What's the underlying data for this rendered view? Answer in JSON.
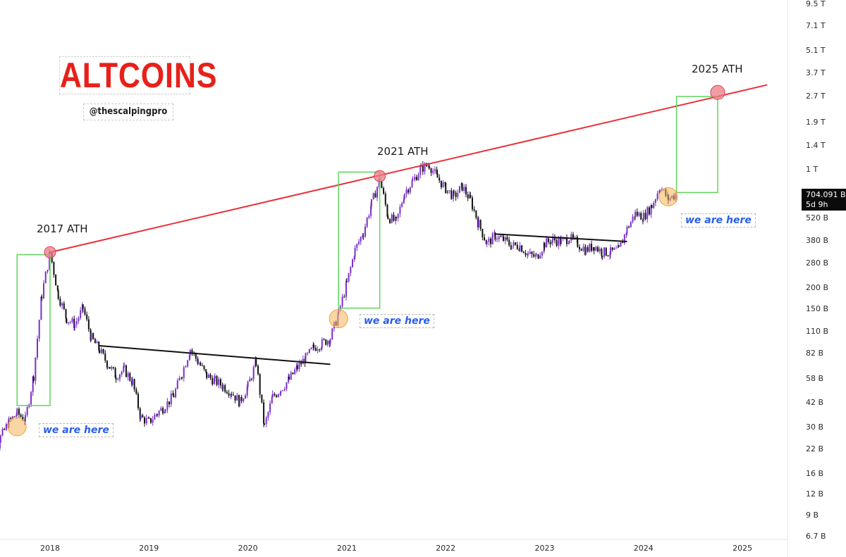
{
  "branding": {
    "title": "ALTCOINS",
    "handle": "@thescalpingpro"
  },
  "annotations": {
    "ath_2017": "2017 ATH",
    "ath_2021": "2021 ATH",
    "ath_2025": "2025 ATH",
    "we_are_here": "we are here"
  },
  "price_tag": {
    "value": "704.091 B",
    "countdown": "5d 9h"
  },
  "colors": {
    "trendline": "#e8323a",
    "up_candle": "#7b2fc9",
    "down_candle": "#111111",
    "box": "#5ed45e",
    "ath_marker": "#ee7a8a",
    "current_marker": "#f5b45a",
    "title": "#e8201a",
    "annotation_text": "#2a5ee8"
  },
  "chart_data": {
    "type": "candlestick",
    "title": "ALTCOINS",
    "scale": "log",
    "y_axis_ticks": [
      "9.5 T",
      "7.1 T",
      "5.1 T",
      "3.7 T",
      "2.7 T",
      "1.9 T",
      "1.4 T",
      "1 T",
      "520 B",
      "380 B",
      "280 B",
      "200 B",
      "150 B",
      "110 B",
      "82 B",
      "58 B",
      "42 B",
      "30 B",
      "22 B",
      "16 B",
      "12 B",
      "9 B",
      "6.7 B"
    ],
    "x_axis_ticks": [
      "2018",
      "2019",
      "2020",
      "2021",
      "2022",
      "2023",
      "2024",
      "2025"
    ],
    "xlim": [
      "2017-05",
      "2025-04"
    ],
    "ylim_usd": [
      6700000000.0,
      9500000000000.0
    ],
    "last_price": "704.091 B",
    "series": [
      {
        "values": [
          [
            "2017-05",
            11000000000.0
          ],
          [
            "2017-06",
            19000000000.0
          ],
          [
            "2017-07",
            26000000000.0
          ],
          [
            "2017-08",
            32000000000.0
          ],
          [
            "2017-09",
            36000000000.0
          ],
          [
            "2017-10",
            33000000000.0
          ],
          [
            "2017-11",
            60000000000.0
          ],
          [
            "2017-12",
            180000000000.0
          ],
          [
            "2018-01",
            320000000000.0
          ],
          [
            "2018-02",
            180000000000.0
          ],
          [
            "2018-03",
            130000000000.0
          ],
          [
            "2018-04",
            120000000000.0
          ],
          [
            "2018-05",
            150000000000.0
          ],
          [
            "2018-06",
            100000000000.0
          ],
          [
            "2018-07",
            85000000000.0
          ],
          [
            "2018-08",
            70000000000.0
          ],
          [
            "2018-09",
            60000000000.0
          ],
          [
            "2018-10",
            65000000000.0
          ],
          [
            "2018-11",
            55000000000.0
          ],
          [
            "2018-12",
            34000000000.0
          ],
          [
            "2019-01",
            32000000000.0
          ],
          [
            "2019-02",
            36000000000.0
          ],
          [
            "2019-03",
            40000000000.0
          ],
          [
            "2019-04",
            46000000000.0
          ],
          [
            "2019-05",
            62000000000.0
          ],
          [
            "2019-06",
            86000000000.0
          ],
          [
            "2019-07",
            72000000000.0
          ],
          [
            "2019-08",
            60000000000.0
          ],
          [
            "2019-09",
            56000000000.0
          ],
          [
            "2019-10",
            52000000000.0
          ],
          [
            "2019-11",
            48000000000.0
          ],
          [
            "2019-12",
            42000000000.0
          ],
          [
            "2020-01",
            52000000000.0
          ],
          [
            "2020-02",
            72000000000.0
          ],
          [
            "2020-03",
            30000000000.0
          ],
          [
            "2020-04",
            45000000000.0
          ],
          [
            "2020-05",
            50000000000.0
          ],
          [
            "2020-06",
            57000000000.0
          ],
          [
            "2020-07",
            67000000000.0
          ],
          [
            "2020-08",
            76000000000.0
          ],
          [
            "2020-09",
            88000000000.0
          ],
          [
            "2020-10",
            93000000000.0
          ],
          [
            "2020-11",
            100000000000.0
          ],
          [
            "2020-12",
            140000000000.0
          ],
          [
            "2021-01",
            210000000000.0
          ],
          [
            "2021-02",
            330000000000.0
          ],
          [
            "2021-03",
            420000000000.0
          ],
          [
            "2021-04",
            620000000000.0
          ],
          [
            "2021-05",
            860000000000.0
          ],
          [
            "2021-06",
            520000000000.0
          ],
          [
            "2021-07",
            480000000000.0
          ],
          [
            "2021-08",
            720000000000.0
          ],
          [
            "2021-09",
            840000000000.0
          ],
          [
            "2021-10",
            1000000000000.0
          ],
          [
            "2021-11",
            1050000000000.0
          ],
          [
            "2021-12",
            880000000000.0
          ],
          [
            "2022-01",
            760000000000.0
          ],
          [
            "2022-02",
            680000000000.0
          ],
          [
            "2022-03",
            780000000000.0
          ],
          [
            "2022-04",
            650000000000.0
          ],
          [
            "2022-05",
            470000000000.0
          ],
          [
            "2022-06",
            360000000000.0
          ],
          [
            "2022-07",
            400000000000.0
          ],
          [
            "2022-08",
            380000000000.0
          ],
          [
            "2022-09",
            350000000000.0
          ],
          [
            "2022-10",
            350000000000.0
          ],
          [
            "2022-11",
            310000000000.0
          ],
          [
            "2022-12",
            300000000000.0
          ],
          [
            "2023-01",
            360000000000.0
          ],
          [
            "2023-02",
            380000000000.0
          ],
          [
            "2023-03",
            370000000000.0
          ],
          [
            "2023-04",
            390000000000.0
          ],
          [
            "2023-05",
            360000000000.0
          ],
          [
            "2023-06",
            330000000000.0
          ],
          [
            "2023-07",
            350000000000.0
          ],
          [
            "2023-08",
            320000000000.0
          ],
          [
            "2023-09",
            320000000000.0
          ],
          [
            "2023-10",
            330000000000.0
          ],
          [
            "2023-11",
            440000000000.0
          ],
          [
            "2023-12",
            540000000000.0
          ],
          [
            "2024-01",
            520000000000.0
          ],
          [
            "2024-02",
            600000000000.0
          ],
          [
            "2024-03",
            780000000000.0
          ],
          [
            "2024-04",
            660000000000.0
          ],
          [
            "2024-05",
            704000000000.0
          ]
        ]
      }
    ],
    "overlays": {
      "ath_trendline": {
        "from": [
          "2018-01",
          320000000000.0
        ],
        "to": [
          "2025-04",
          3100000000000.0
        ]
      },
      "resistance_2018_2020": {
        "from": [
          "2018-07",
          90000000000.0
        ],
        "to": [
          "2020-11",
          70000000000.0
        ]
      },
      "resistance_2022_2023": {
        "from": [
          "2022-07",
          410000000000.0
        ],
        "to": [
          "2023-11",
          370000000000.0
        ]
      },
      "ath_markers": [
        [
          "2018-01",
          320000000000.0
        ],
        [
          "2021-05",
          900000000000.0
        ],
        [
          "2024-10",
          2800000000000.0
        ]
      ],
      "current_markers": [
        [
          "2017-09",
          30000000000.0
        ],
        [
          "2020-12",
          130000000000.0
        ],
        [
          "2024-04",
          680000000000.0
        ]
      ]
    }
  }
}
